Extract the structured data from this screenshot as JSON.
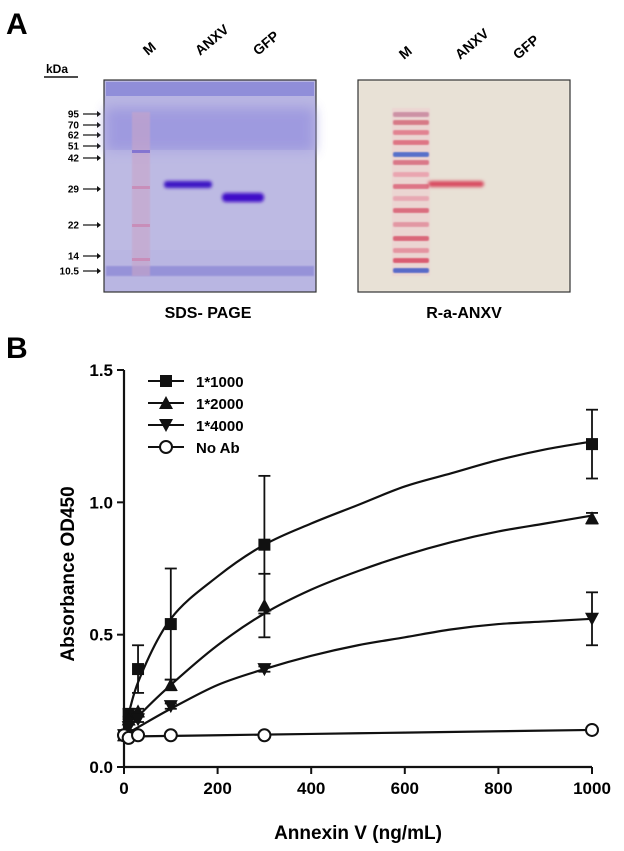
{
  "panel_a": {
    "letter": "A",
    "gel": {
      "caption": "SDS- PAGE",
      "unit_label": "kDa",
      "lanes": [
        "M",
        "ANXV",
        "GFP"
      ],
      "markers": [
        "95",
        "70",
        "62",
        "51",
        "42",
        "29",
        "22",
        "14",
        "10.5"
      ]
    },
    "blot": {
      "caption": "R-a-ANXV",
      "lanes": [
        "M",
        "ANXV",
        "GFP"
      ]
    },
    "colors": {
      "gel_bg": "#b7b5e0",
      "gel_band": "#3d10c2",
      "blot_bg": "#e9e2d7",
      "blot_band": "#d94a5f"
    }
  },
  "panel_b": {
    "letter": "B"
  },
  "chart_data": {
    "type": "scatter",
    "title": "",
    "xlabel": "Annexin V (ng/mL)",
    "ylabel": "Absorbance OD450",
    "xlim": [
      0,
      1000
    ],
    "ylim": [
      0,
      1.5
    ],
    "xticks": [
      "0",
      "200",
      "400",
      "600",
      "800",
      "1000"
    ],
    "yticks": [
      "0.0",
      "0.5",
      "1.0",
      "1.5"
    ],
    "legend_position": "top-left",
    "fit": "saturation curve",
    "series": [
      {
        "name": "1*1000",
        "marker": "square-filled",
        "points": [
          {
            "x": 0,
            "y": 0.12,
            "err": 0
          },
          {
            "x": 10,
            "y": 0.2,
            "err": 0.02
          },
          {
            "x": 30,
            "y": 0.37,
            "err": 0.09
          },
          {
            "x": 100,
            "y": 0.54,
            "err": 0.21
          },
          {
            "x": 300,
            "y": 0.84,
            "err": 0.26
          },
          {
            "x": 1000,
            "y": 1.22,
            "err": 0.13
          }
        ],
        "curve": [
          [
            0,
            0.12
          ],
          [
            30,
            0.32
          ],
          [
            100,
            0.56
          ],
          [
            200,
            0.72
          ],
          [
            300,
            0.84
          ],
          [
            400,
            0.92
          ],
          [
            500,
            0.99
          ],
          [
            600,
            1.06
          ],
          [
            700,
            1.11
          ],
          [
            800,
            1.16
          ],
          [
            900,
            1.2
          ],
          [
            1000,
            1.23
          ]
        ]
      },
      {
        "name": "1*2000",
        "marker": "triangle-up-filled",
        "points": [
          {
            "x": 0,
            "y": 0.12,
            "err": 0
          },
          {
            "x": 10,
            "y": 0.18,
            "err": 0.01
          },
          {
            "x": 30,
            "y": 0.21,
            "err": 0.01
          },
          {
            "x": 100,
            "y": 0.31,
            "err": 0.02
          },
          {
            "x": 300,
            "y": 0.61,
            "err": 0.12
          },
          {
            "x": 1000,
            "y": 0.94,
            "err": 0.02
          }
        ],
        "curve": [
          [
            0,
            0.12
          ],
          [
            30,
            0.19
          ],
          [
            100,
            0.31
          ],
          [
            200,
            0.46
          ],
          [
            300,
            0.58
          ],
          [
            400,
            0.67
          ],
          [
            500,
            0.74
          ],
          [
            600,
            0.8
          ],
          [
            700,
            0.85
          ],
          [
            800,
            0.89
          ],
          [
            900,
            0.92
          ],
          [
            1000,
            0.95
          ]
        ]
      },
      {
        "name": "1*4000",
        "marker": "triangle-down-filled",
        "points": [
          {
            "x": 0,
            "y": 0.12,
            "err": 0
          },
          {
            "x": 10,
            "y": 0.15,
            "err": 0.01
          },
          {
            "x": 30,
            "y": 0.18,
            "err": 0.01
          },
          {
            "x": 100,
            "y": 0.23,
            "err": 0.01
          },
          {
            "x": 300,
            "y": 0.37,
            "err": 0.01
          },
          {
            "x": 1000,
            "y": 0.56,
            "err": 0.1
          }
        ],
        "curve": [
          [
            0,
            0.12
          ],
          [
            30,
            0.15
          ],
          [
            100,
            0.22
          ],
          [
            200,
            0.31
          ],
          [
            300,
            0.37
          ],
          [
            400,
            0.42
          ],
          [
            500,
            0.46
          ],
          [
            600,
            0.49
          ],
          [
            700,
            0.52
          ],
          [
            800,
            0.54
          ],
          [
            900,
            0.55
          ],
          [
            1000,
            0.56
          ]
        ]
      },
      {
        "name": "No Ab",
        "marker": "circle-open",
        "points": [
          {
            "x": 0,
            "y": 0.12,
            "err": 0
          },
          {
            "x": 10,
            "y": 0.11,
            "err": 0
          },
          {
            "x": 30,
            "y": 0.12,
            "err": 0
          },
          {
            "x": 100,
            "y": 0.12,
            "err": 0
          },
          {
            "x": 300,
            "y": 0.12,
            "err": 0
          },
          {
            "x": 1000,
            "y": 0.14,
            "err": 0
          }
        ],
        "curve": [
          [
            0,
            0.115
          ],
          [
            200,
            0.12
          ],
          [
            400,
            0.125
          ],
          [
            600,
            0.13
          ],
          [
            800,
            0.135
          ],
          [
            1000,
            0.14
          ]
        ]
      }
    ]
  }
}
